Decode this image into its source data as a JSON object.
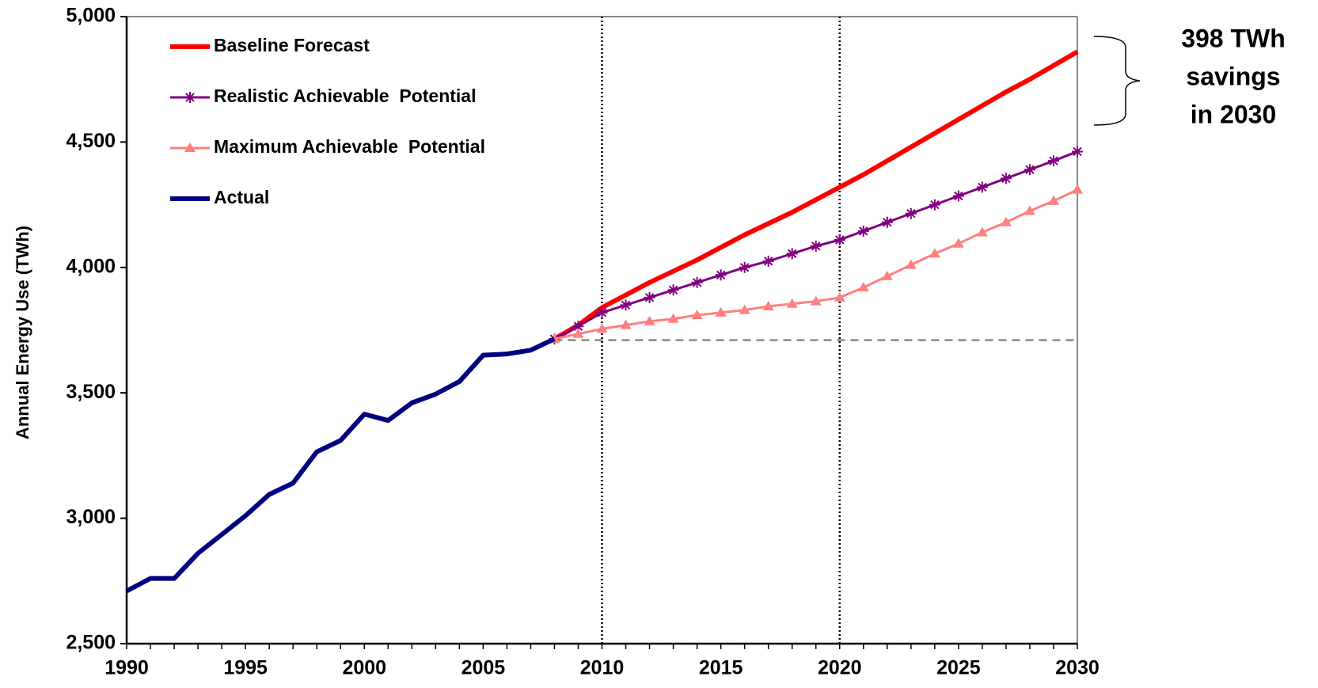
{
  "chart_data": {
    "type": "line",
    "y_label": "Annual Energy Use (TWh)",
    "annotation": [
      "398 TWh",
      "savings",
      "in 2030"
    ],
    "x": [
      1990,
      1991,
      1992,
      1993,
      1994,
      1995,
      1996,
      1997,
      1998,
      1999,
      2000,
      2001,
      2002,
      2003,
      2004,
      2005,
      2006,
      2007,
      2008,
      2009,
      2010,
      2011,
      2012,
      2013,
      2014,
      2015,
      2016,
      2017,
      2018,
      2019,
      2020,
      2021,
      2022,
      2023,
      2024,
      2025,
      2026,
      2027,
      2028,
      2029,
      2030
    ],
    "series": [
      {
        "name": "Baseline Forecast",
        "color": "#ff0000",
        "marker": "none",
        "values": [
          null,
          null,
          null,
          null,
          null,
          null,
          null,
          null,
          null,
          null,
          null,
          null,
          null,
          null,
          null,
          null,
          null,
          null,
          3715,
          3770,
          3840,
          3890,
          3940,
          3985,
          4030,
          4080,
          4130,
          4175,
          4220,
          4270,
          4320,
          4370,
          4425,
          4480,
          4535,
          4590,
          4645,
          4700,
          4750,
          4805,
          4860
        ]
      },
      {
        "name": "Realistic Achievable  Potential",
        "color": "#800080",
        "marker": "asterisk",
        "values": [
          null,
          null,
          null,
          null,
          null,
          null,
          null,
          null,
          null,
          null,
          null,
          null,
          null,
          null,
          null,
          null,
          null,
          null,
          3715,
          3765,
          3820,
          3850,
          3880,
          3910,
          3940,
          3970,
          4000,
          4025,
          4055,
          4085,
          4110,
          4145,
          4180,
          4215,
          4250,
          4285,
          4320,
          4355,
          4390,
          4425,
          4462
        ]
      },
      {
        "name": "Maximum Achievable  Potential",
        "color": "#ff8080",
        "marker": "triangle",
        "values": [
          null,
          null,
          null,
          null,
          null,
          null,
          null,
          null,
          null,
          null,
          null,
          null,
          null,
          null,
          null,
          null,
          null,
          null,
          3715,
          3735,
          3755,
          3770,
          3785,
          3795,
          3810,
          3820,
          3830,
          3845,
          3855,
          3865,
          3880,
          3920,
          3965,
          4010,
          4055,
          4095,
          4140,
          4180,
          4225,
          4265,
          4310
        ]
      },
      {
        "name": "Actual",
        "color": "#000080",
        "marker": "none",
        "values": [
          2710,
          2760,
          2760,
          2860,
          2935,
          3010,
          3095,
          3140,
          3265,
          3310,
          3415,
          3390,
          3460,
          3495,
          3545,
          3650,
          3655,
          3670,
          3715,
          null,
          null,
          null,
          null,
          null,
          null,
          null,
          null,
          null,
          null,
          null,
          null,
          null,
          null,
          null,
          null,
          null,
          null,
          null,
          null,
          null,
          null
        ]
      }
    ],
    "xlim": [
      1990,
      2030
    ],
    "ylim": [
      2500,
      5000
    ],
    "xticks": [
      1990,
      1995,
      2000,
      2005,
      2010,
      2015,
      2020,
      2025,
      2030
    ],
    "yticks": [
      {
        "value": 2500,
        "label": "2,500"
      },
      {
        "value": 3000,
        "label": "3,000"
      },
      {
        "value": 3500,
        "label": "3,500"
      },
      {
        "value": 4000,
        "label": "4,000"
      },
      {
        "value": 4500,
        "label": "4,500"
      },
      {
        "value": 5000,
        "label": "5,000"
      }
    ],
    "vlines": [
      2010,
      2020
    ],
    "hline": 3710,
    "legend": "upper left"
  }
}
